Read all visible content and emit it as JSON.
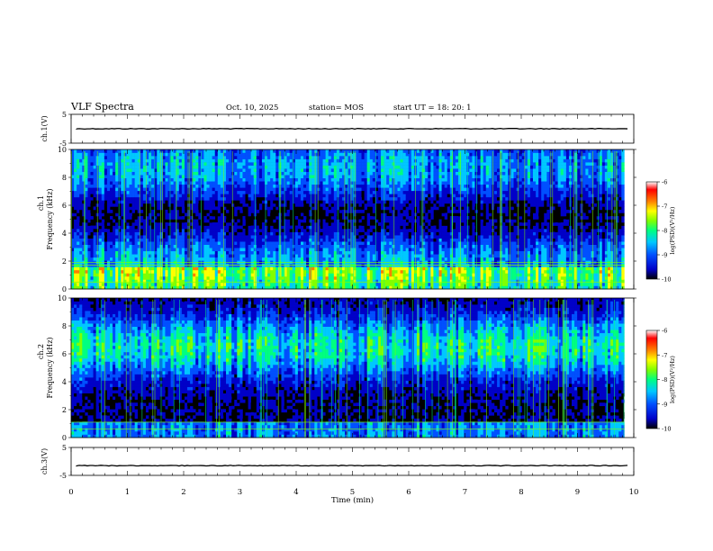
{
  "header": {
    "title": "VLF Spectra",
    "date": "Oct. 10, 2025",
    "station": "station= MOS",
    "start": "start  UT =  18: 20: 1"
  },
  "chart_data": {
    "type": "heatmap",
    "x_axis": {
      "label": "Time  (min)",
      "range": [
        0,
        10
      ],
      "ticks": [
        "0",
        "1",
        "2",
        "3",
        "4",
        "5",
        "6",
        "7",
        "8",
        "9",
        "10"
      ]
    },
    "panels": [
      {
        "id": "ch1-wave",
        "type": "line",
        "ylabel": "ch.1(V)",
        "ylim": [
          -5,
          5
        ],
        "tick_labels": [
          "5",
          "-5"
        ],
        "baseline": 0.0
      },
      {
        "id": "ch1-spec",
        "type": "heatmap",
        "ylabel_top": "ch.1",
        "ylabel": "Frequency (kHz)",
        "ylim": [
          0,
          10
        ],
        "tick_labels": [
          "0",
          "2",
          "4",
          "6",
          "8",
          "10"
        ],
        "data_xlim": [
          0,
          9.83
        ],
        "colorbar": {
          "label": "log(PSD)(V²/Hz)",
          "range": [
            -10,
            -6
          ],
          "ticks": [
            "-6",
            "-7",
            "-8",
            "-9",
            "-10"
          ]
        }
      },
      {
        "id": "ch2-spec",
        "type": "heatmap",
        "ylabel_top": "ch.2",
        "ylabel": "Frequency (kHz)",
        "ylim": [
          0,
          10
        ],
        "tick_labels": [
          "0",
          "2",
          "4",
          "6",
          "8",
          "10"
        ],
        "data_xlim": [
          0,
          9.83
        ],
        "colorbar": {
          "label": "log(PSD)(V²/Hz)",
          "range": [
            -10,
            -6
          ],
          "ticks": [
            "-6",
            "-7",
            "-8",
            "-9",
            "-10"
          ]
        }
      },
      {
        "id": "ch3-wave",
        "type": "line",
        "ylabel": "ch.3(V)",
        "ylim": [
          -5,
          5
        ],
        "tick_labels": [
          "5",
          "-5"
        ],
        "baseline": -1.5
      }
    ],
    "colormap": [
      "#000000",
      "#0000c8",
      "#0050ff",
      "#00c8ff",
      "#00ff80",
      "#80ff00",
      "#ffff00",
      "#ff8000",
      "#ff0000",
      "#ffffff"
    ]
  }
}
